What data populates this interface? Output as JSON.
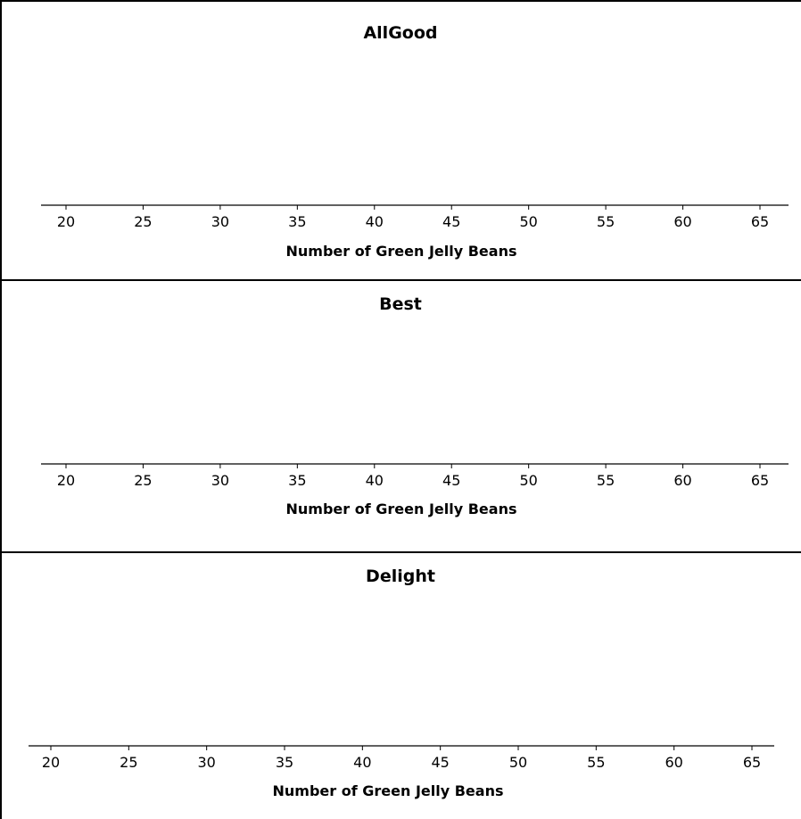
{
  "chart_data": [
    {
      "type": "scatter",
      "title": "AllGood",
      "xlabel": "Number of Green Jelly Beans",
      "ylabel": "",
      "xlim": [
        20,
        65
      ],
      "x_ticks": [
        20,
        25,
        30,
        35,
        40,
        45,
        50,
        55,
        60,
        65
      ],
      "tick_labels": [
        "20",
        "25",
        "30",
        "35",
        "40",
        "45",
        "50",
        "55",
        "60",
        "65"
      ],
      "points": [],
      "grid": false
    },
    {
      "type": "scatter",
      "title": "Best",
      "xlabel": "Number of Green Jelly Beans",
      "ylabel": "",
      "xlim": [
        20,
        65
      ],
      "x_ticks": [
        20,
        25,
        30,
        35,
        40,
        45,
        50,
        55,
        60,
        65
      ],
      "tick_labels": [
        "20",
        "25",
        "30",
        "35",
        "40",
        "45",
        "50",
        "55",
        "60",
        "65"
      ],
      "points": [],
      "grid": false
    },
    {
      "type": "scatter",
      "title": "Delight",
      "xlabel": "Number of Green Jelly Beans",
      "ylabel": "",
      "xlim": [
        20,
        65
      ],
      "x_ticks": [
        20,
        25,
        30,
        35,
        40,
        45,
        50,
        55,
        60,
        65
      ],
      "tick_labels": [
        "20",
        "25",
        "30",
        "35",
        "40",
        "45",
        "50",
        "55",
        "60",
        "65"
      ],
      "points": [],
      "grid": false
    }
  ]
}
